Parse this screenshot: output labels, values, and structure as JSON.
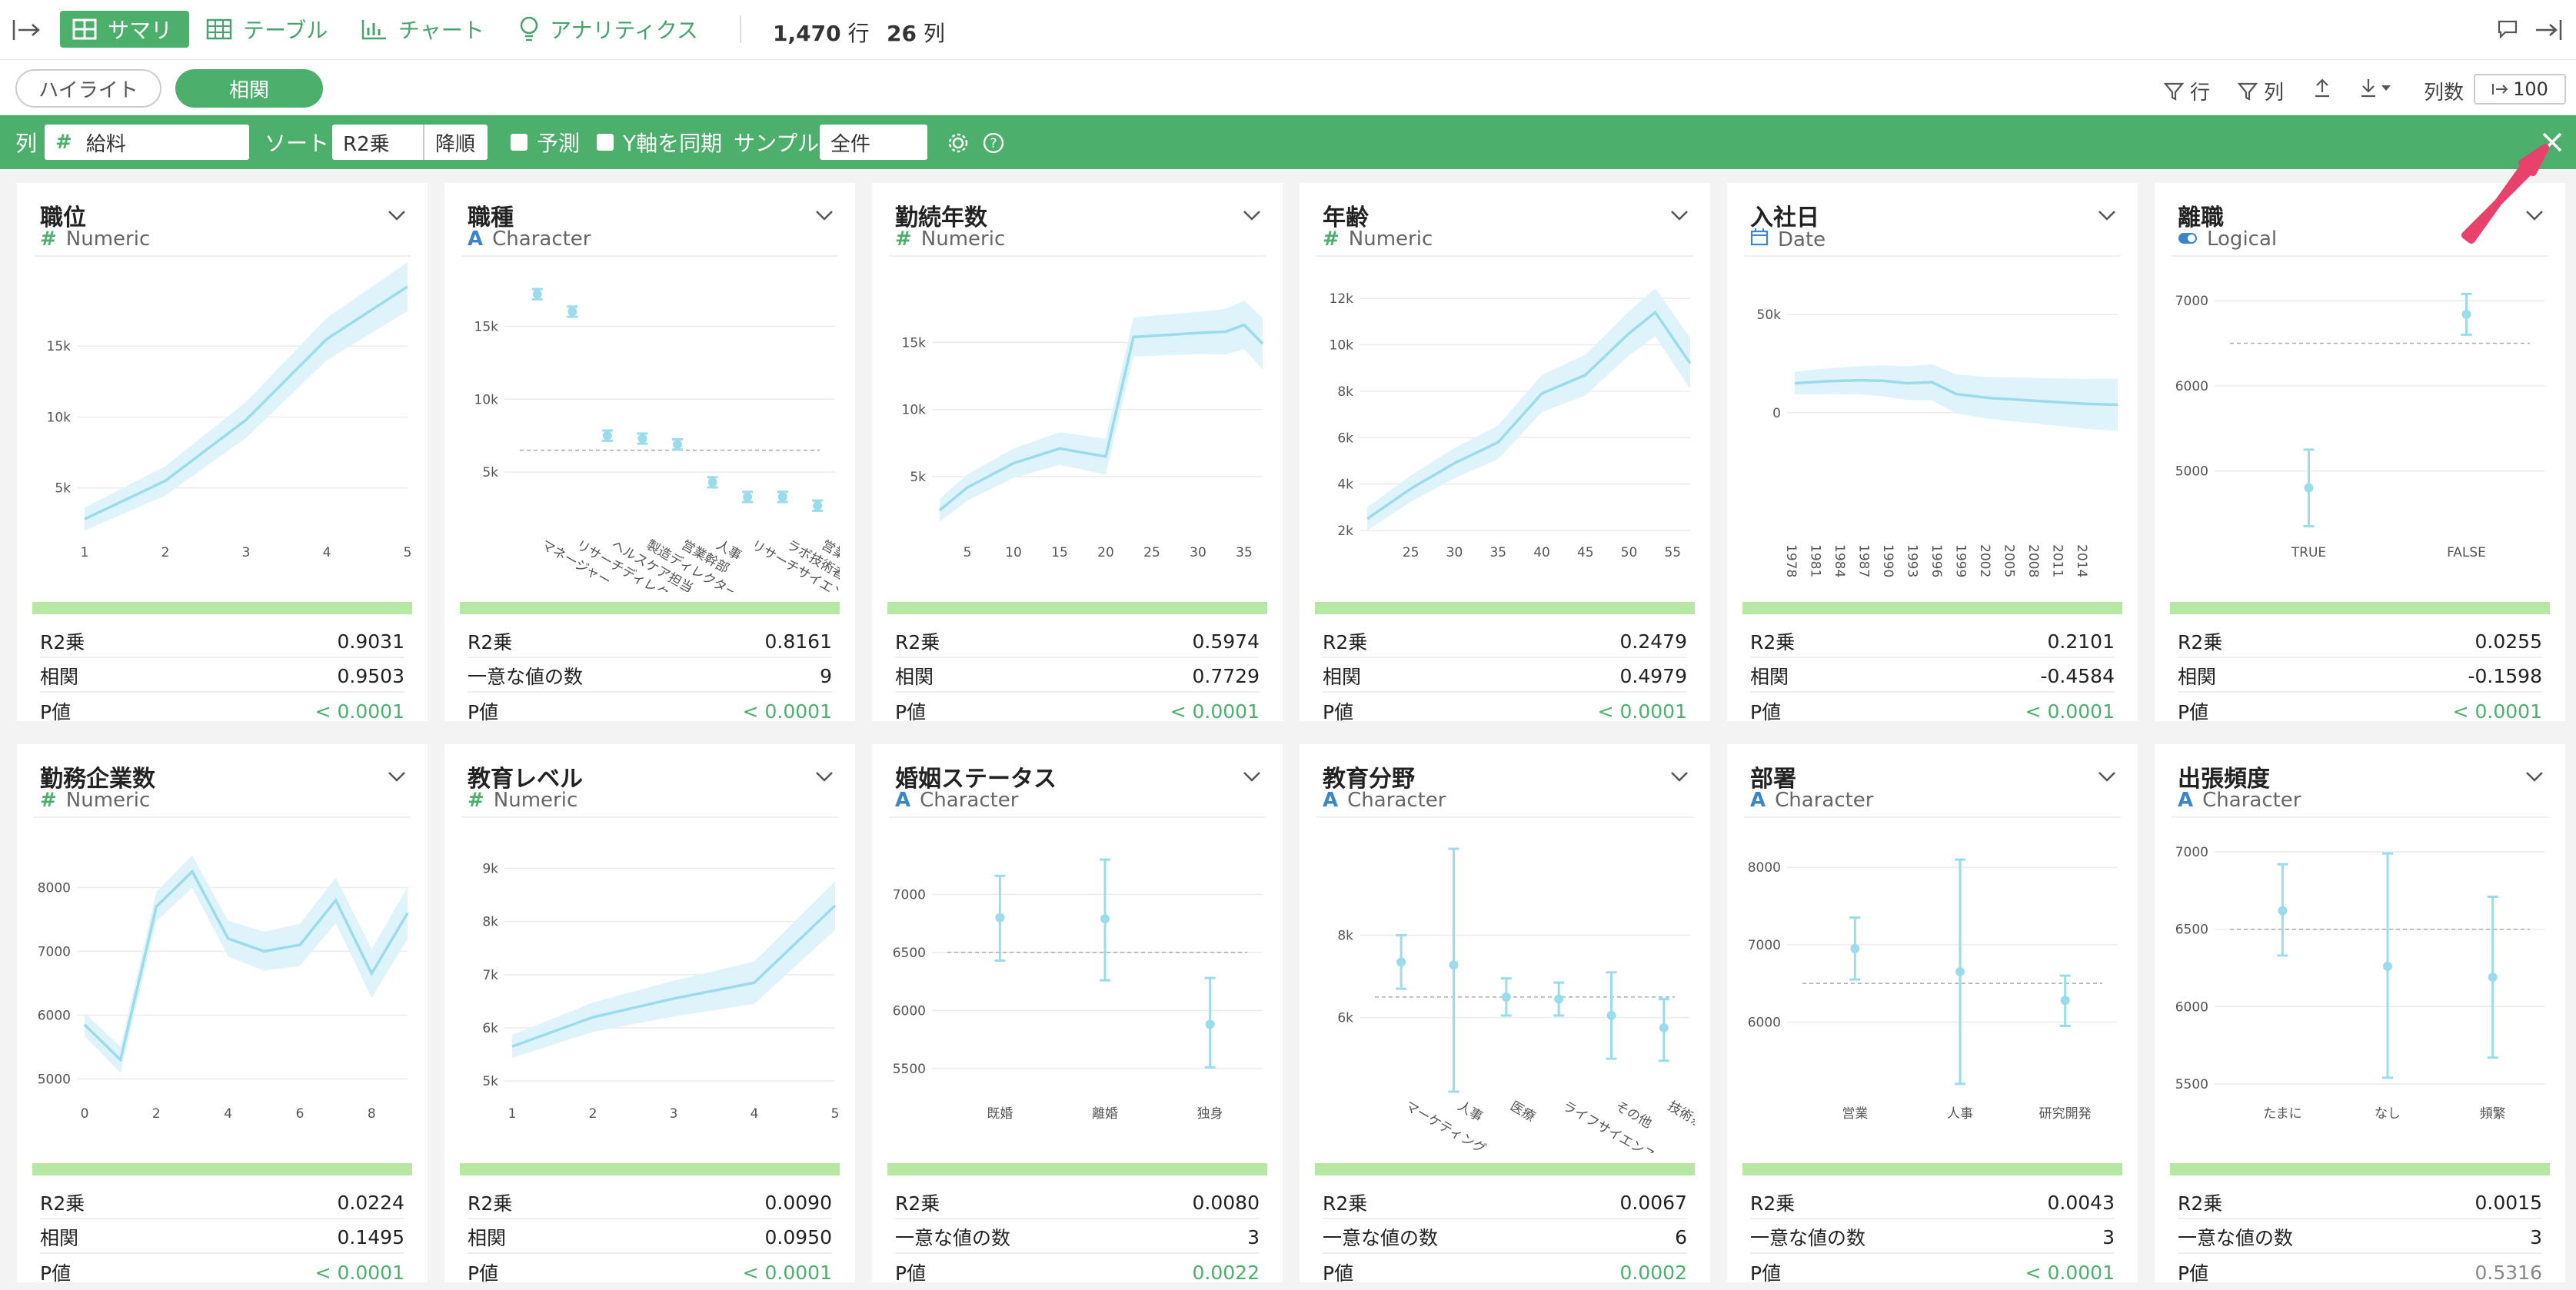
{
  "topbar": {
    "tabs": [
      {
        "label": "サマリ",
        "icon": "summary-grid-icon"
      },
      {
        "label": "テーブル",
        "icon": "table-icon"
      },
      {
        "label": "チャート",
        "icon": "chart-icon"
      },
      {
        "label": "アナリティクス",
        "icon": "bulb-icon"
      }
    ],
    "row_count": "1,470",
    "row_unit": "行",
    "col_count": "26",
    "col_unit": "列"
  },
  "toolbar2": {
    "highlight_label": "ハイライト",
    "corr_label": "相関",
    "row_filter_label": "行",
    "col_filter_label": "列",
    "colnum_label": "列数",
    "colnum_value": "100"
  },
  "settings": {
    "col_label": "列",
    "column_value": "給料",
    "sort_label": "ソート",
    "sort_by": "R2乗",
    "sort_order": "降順",
    "predict_label": "予測",
    "sync_y_label": "Y軸を同期",
    "sample_label": "サンプル",
    "sample_value": "全件"
  },
  "colors": {
    "accent": "#4caf6c",
    "chart": "#9adcec",
    "band": "#dff3fa",
    "strip": "#b6e8a3"
  },
  "cards": [
    {
      "title": "職位",
      "type": "Numeric",
      "type_icon": "#",
      "stats": [
        [
          "R2乗",
          "0.9031"
        ],
        [
          "相関",
          "0.9503"
        ],
        [
          "P値",
          "< 0.0001"
        ]
      ]
    },
    {
      "title": "職種",
      "type": "Character",
      "type_icon": "A",
      "stats": [
        [
          "R2乗",
          "0.8161"
        ],
        [
          "一意な値の数",
          "9"
        ],
        [
          "P値",
          "< 0.0001"
        ]
      ]
    },
    {
      "title": "勤続年数",
      "type": "Numeric",
      "type_icon": "#",
      "stats": [
        [
          "R2乗",
          "0.5974"
        ],
        [
          "相関",
          "0.7729"
        ],
        [
          "P値",
          "< 0.0001"
        ]
      ]
    },
    {
      "title": "年齢",
      "type": "Numeric",
      "type_icon": "#",
      "stats": [
        [
          "R2乗",
          "0.2479"
        ],
        [
          "相関",
          "0.4979"
        ],
        [
          "P値",
          "< 0.0001"
        ]
      ]
    },
    {
      "title": "入社日",
      "type": "Date",
      "type_icon": "cal",
      "stats": [
        [
          "R2乗",
          "0.2101"
        ],
        [
          "相関",
          "-0.4584"
        ],
        [
          "P値",
          "< 0.0001"
        ]
      ]
    },
    {
      "title": "離職",
      "type": "Logical",
      "type_icon": "tog",
      "stats": [
        [
          "R2乗",
          "0.0255"
        ],
        [
          "相関",
          "-0.1598"
        ],
        [
          "P値",
          "< 0.0001"
        ]
      ]
    },
    {
      "title": "勤務企業数",
      "type": "Numeric",
      "type_icon": "#",
      "stats": [
        [
          "R2乗",
          "0.0224"
        ],
        [
          "相関",
          "0.1495"
        ],
        [
          "P値",
          "< 0.0001"
        ]
      ]
    },
    {
      "title": "教育レベル",
      "type": "Numeric",
      "type_icon": "#",
      "stats": [
        [
          "R2乗",
          "0.0090"
        ],
        [
          "相関",
          "0.0950"
        ],
        [
          "P値",
          "< 0.0001"
        ]
      ]
    },
    {
      "title": "婚姻ステータス",
      "type": "Character",
      "type_icon": "A",
      "stats": [
        [
          "R2乗",
          "0.0080"
        ],
        [
          "一意な値の数",
          "3"
        ],
        [
          "P値",
          "0.0022"
        ]
      ]
    },
    {
      "title": "教育分野",
      "type": "Character",
      "type_icon": "A",
      "stats": [
        [
          "R2乗",
          "0.0067"
        ],
        [
          "一意な値の数",
          "6"
        ],
        [
          "P値",
          "0.0002"
        ]
      ]
    },
    {
      "title": "部署",
      "type": "Character",
      "type_icon": "A",
      "stats": [
        [
          "R2乗",
          "0.0043"
        ],
        [
          "一意な値の数",
          "3"
        ],
        [
          "P値",
          "< 0.0001"
        ]
      ]
    },
    {
      "title": "出張頻度",
      "type": "Character",
      "type_icon": "A",
      "stats": [
        [
          "R2乗",
          "0.0015"
        ],
        [
          "一意な値の数",
          "3"
        ],
        [
          "P値",
          "0.5316"
        ]
      ]
    }
  ],
  "chart_data": [
    {
      "type": "line",
      "x": [
        1,
        2,
        3,
        4,
        5
      ],
      "y": [
        2800,
        5500,
        9800,
        15500,
        19200
      ],
      "xlim": [
        1,
        5
      ],
      "ylim": [
        2000,
        20000
      ],
      "yticks": [
        "5k",
        "10k",
        "15k"
      ],
      "xticks": [
        "1",
        "2",
        "3",
        "4",
        "5"
      ]
    },
    {
      "type": "scatter",
      "categories": [
        "マネージャー",
        "リサーチディレクター",
        "ヘルスケア担当",
        "製造ディレクター",
        "営業幹部",
        "人事",
        "リサーチサイエンティスト",
        "ラボ技術者",
        "営業"
      ],
      "values": [
        17200,
        16000,
        7500,
        7300,
        6900,
        4300,
        3300,
        3300,
        2700
      ],
      "mean": 6500,
      "ylim": [
        1000,
        18500
      ],
      "yticks": [
        "5k",
        "10k",
        "15k"
      ]
    },
    {
      "type": "line",
      "x": [
        2,
        5,
        10,
        15,
        20,
        23,
        30,
        33,
        35,
        37
      ],
      "y": [
        2500,
        4200,
        6000,
        7100,
        6500,
        15400,
        15700,
        15800,
        16300,
        14900
      ],
      "xlim": [
        2,
        37
      ],
      "ylim": [
        1000,
        20000
      ],
      "yticks": [
        "5k",
        "10k",
        "15k"
      ],
      "xticks": [
        "5",
        "10",
        "15",
        "20",
        "25",
        "30",
        "35"
      ]
    },
    {
      "type": "line",
      "x": [
        20,
        25,
        30,
        35,
        40,
        45,
        50,
        53,
        57
      ],
      "y": [
        2500,
        3800,
        4900,
        5800,
        7900,
        8700,
        10500,
        11400,
        9200
      ],
      "xlim": [
        20,
        57
      ],
      "ylim": [
        2000,
        13000
      ],
      "yticks": [
        "2k",
        "4k",
        "6k",
        "8k",
        "10k",
        "12k"
      ],
      "xticks": [
        "25",
        "30",
        "35",
        "40",
        "45",
        "50",
        "55"
      ]
    },
    {
      "type": "line",
      "x": [
        1978,
        1982,
        1986,
        1989,
        1992,
        1995,
        1998,
        2002,
        2006,
        2010,
        2014,
        2018
      ],
      "y": [
        15000,
        16000,
        16500,
        16200,
        15000,
        15500,
        9500,
        7500,
        6500,
        5500,
        4500,
        4000
      ],
      "xlim": [
        1978,
        2018
      ],
      "ylim": [
        -60000,
        70000
      ],
      "yticks": [
        "0",
        "50k"
      ],
      "xticks": [
        "1978",
        "1981",
        "1984",
        "1987",
        "1990",
        "1993",
        "1996",
        "1999",
        "2002",
        "2005",
        "2008",
        "2011",
        "2014"
      ]
    },
    {
      "type": "scatter",
      "categories": [
        "TRUE",
        "FALSE"
      ],
      "values": [
        4800,
        6840
      ],
      "ci": [
        [
          4350,
          5250
        ],
        [
          6600,
          7080
        ]
      ],
      "mean": 6500,
      "ylim": [
        4300,
        7300
      ],
      "yticks": [
        "5000",
        "6000",
        "7000"
      ]
    },
    {
      "type": "line",
      "x": [
        0,
        1,
        2,
        3,
        4,
        5,
        6,
        7,
        8,
        9
      ],
      "y": [
        5850,
        5300,
        7700,
        8250,
        7200,
        7000,
        7100,
        7800,
        6650,
        7600
      ],
      "xlim": [
        0,
        9
      ],
      "ylim": [
        4800,
        8800
      ],
      "yticks": [
        "5000",
        "6000",
        "7000",
        "8000"
      ],
      "xticks": [
        "0",
        "2",
        "4",
        "6",
        "8"
      ]
    },
    {
      "type": "line",
      "x": [
        1,
        2,
        3,
        4,
        5
      ],
      "y": [
        5650,
        6200,
        6550,
        6850,
        8300
      ],
      "xlim": [
        1,
        5
      ],
      "ylim": [
        4800,
        9600
      ],
      "yticks": [
        "5k",
        "6k",
        "7k",
        "8k",
        "9k"
      ],
      "xticks": [
        "1",
        "2",
        "3",
        "4",
        "5"
      ]
    },
    {
      "type": "scatter",
      "categories": [
        "既婚",
        "離婚",
        "独身"
      ],
      "values": [
        6800,
        6790,
        5880
      ],
      "ci": [
        [
          6430,
          7160
        ],
        [
          6260,
          7300
        ],
        [
          5510,
          6280
        ]
      ],
      "mean": 6500,
      "ylim": [
        5300,
        7500
      ],
      "yticks": [
        "5500",
        "6000",
        "6500",
        "7000"
      ]
    },
    {
      "type": "scatter",
      "categories": [
        "マーケティング",
        "人事",
        "医療",
        "ライフサイエンス",
        "その他",
        "技術系"
      ],
      "values": [
        7350,
        7280,
        6500,
        6450,
        6050,
        5750
      ],
      "ci": [
        [
          6700,
          8000
        ],
        [
          4200,
          10100
        ],
        [
          6050,
          6950
        ],
        [
          6050,
          6850
        ],
        [
          5000,
          7100
        ],
        [
          4950,
          6450
        ]
      ],
      "mean": 6500,
      "ylim": [
        4200,
        10400
      ],
      "yticks": [
        "6k",
        "8k"
      ]
    },
    {
      "type": "scatter",
      "categories": [
        "営業",
        "人事",
        "研究開発"
      ],
      "values": [
        6950,
        6650,
        6280
      ],
      "ci": [
        [
          6550,
          7350
        ],
        [
          5200,
          8100
        ],
        [
          5950,
          6600
        ]
      ],
      "mean": 6500,
      "ylim": [
        5100,
        8400
      ],
      "yticks": [
        "6000",
        "7000",
        "8000"
      ]
    },
    {
      "type": "scatter",
      "categories": [
        "たまに",
        "なし",
        "頻繁"
      ],
      "values": [
        6620,
        6260,
        6190
      ],
      "ci": [
        [
          6330,
          6920
        ],
        [
          5540,
          6990
        ],
        [
          5670,
          6710
        ]
      ],
      "mean": 6500,
      "ylim": [
        5450,
        7100
      ],
      "yticks": [
        "5500",
        "6000",
        "6500",
        "7000"
      ]
    }
  ]
}
